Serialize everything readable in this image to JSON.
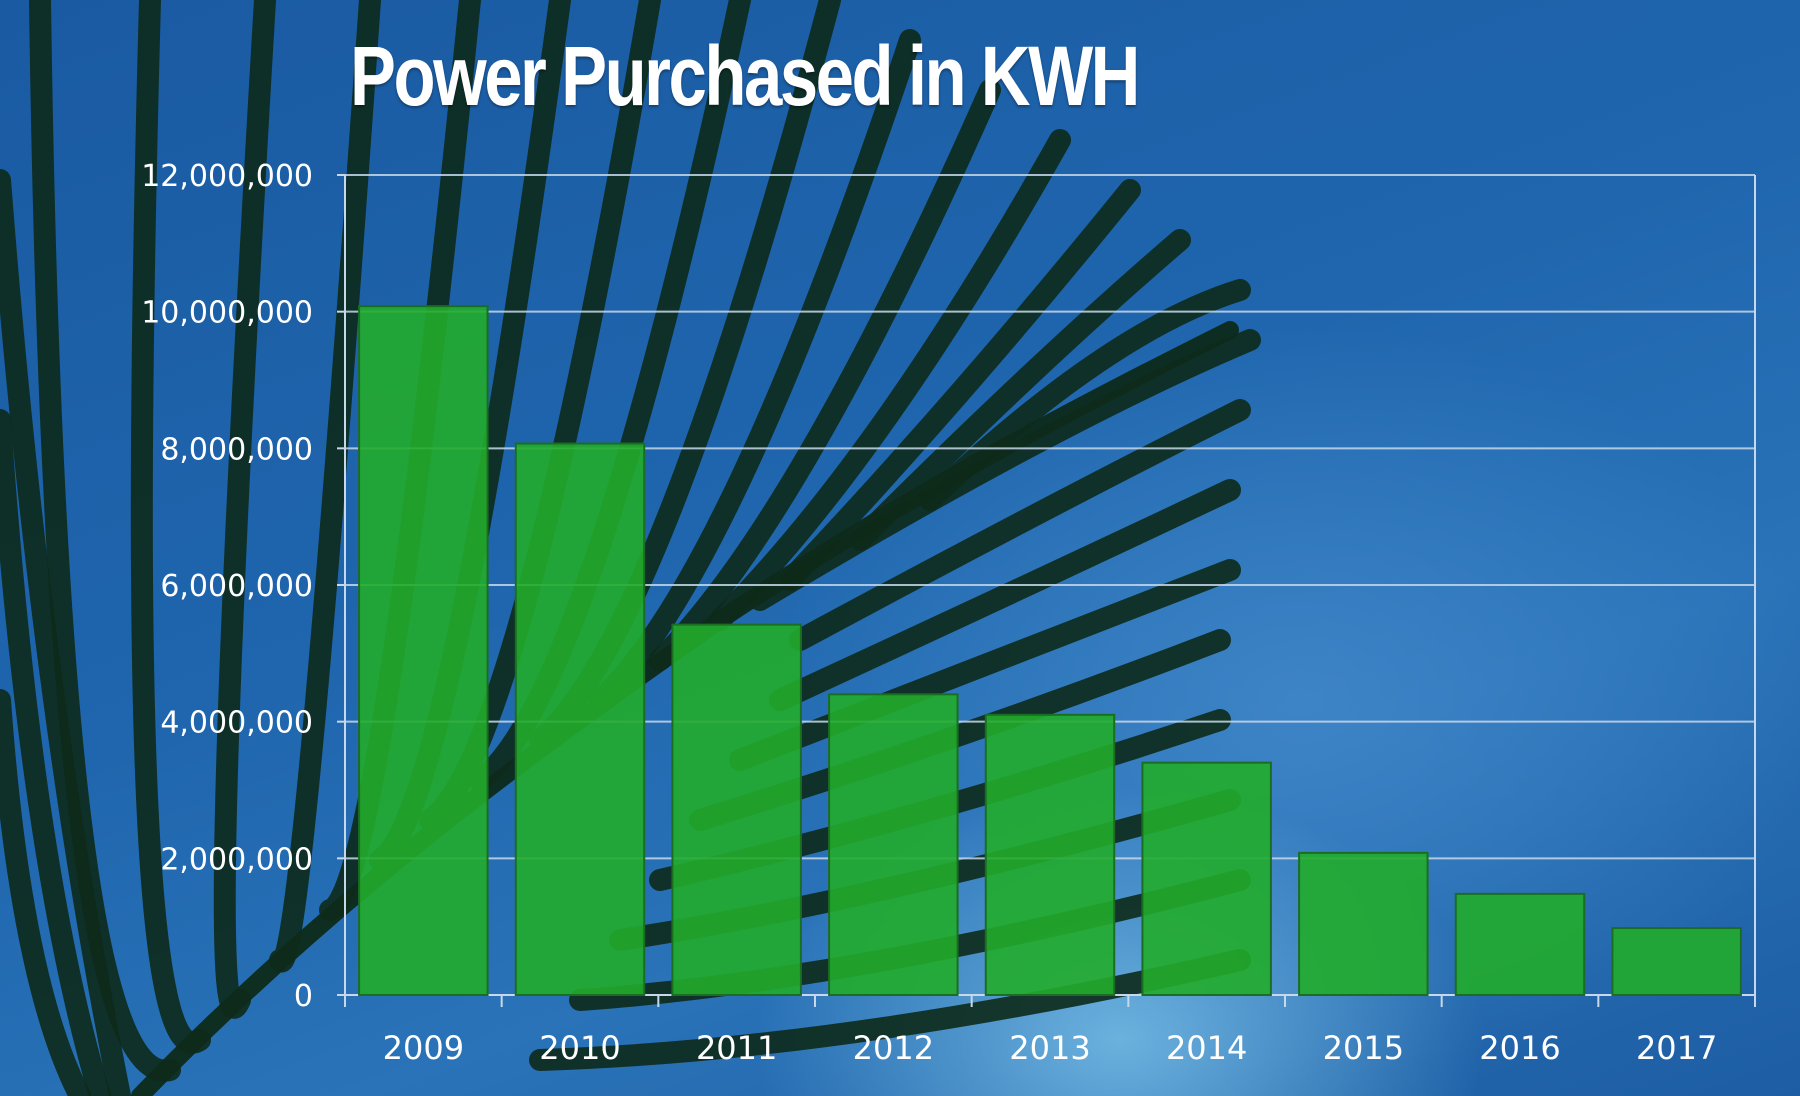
{
  "chart_data": {
    "type": "bar",
    "title": "Power Purchased in KWH",
    "xlabel": "",
    "ylabel": "",
    "categories": [
      "2009",
      "2010",
      "2011",
      "2012",
      "2013",
      "2014",
      "2015",
      "2016",
      "2017"
    ],
    "values": [
      10080000,
      8070000,
      5420000,
      4400000,
      4100000,
      3400000,
      2080000,
      1480000,
      980000
    ],
    "ylim": [
      0,
      12000000
    ],
    "yticks": [
      "0",
      "2,000,000",
      "4,000,000",
      "6,000,000",
      "8,000,000",
      "10,000,000",
      "12,000,000"
    ],
    "grid": true,
    "colors": {
      "bar": "#22ac2b",
      "bar_edge": "#1a6e22",
      "grid": "#c7d8ea",
      "background": "#1f63ab",
      "leaf": "#0d2a1a"
    }
  }
}
